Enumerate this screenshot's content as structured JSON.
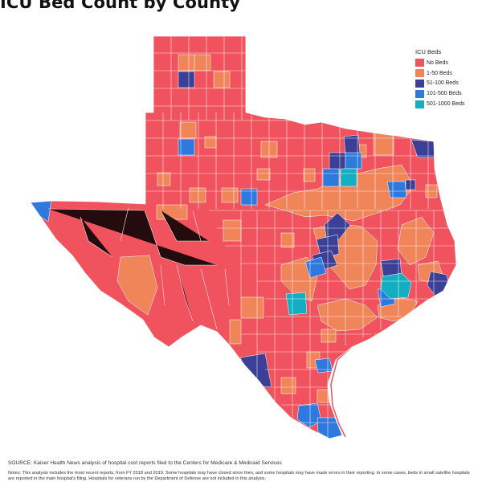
{
  "title": "ICU Bed Count by County",
  "legend": {
    "title": "ICU Beds",
    "items": [
      {
        "label": "No Beds",
        "color": "#f0525e"
      },
      {
        "label": "1-50 Beds",
        "color": "#f0855a"
      },
      {
        "label": "51-100 Beds",
        "color": "#3b3f95"
      },
      {
        "label": "101-500 Beds",
        "color": "#2e79de"
      },
      {
        "label": "501-1000 Beds",
        "color": "#14aec2"
      }
    ]
  },
  "source": "SOURCE: Kaiser Health News analysis of hospital cost reports filed to the Centers for Medicare & Medicaid Services",
  "notes": "Notes: This analysis includes the most recent reports, from FY 2018 and 2019. Some hospitals may have closed since then, and some hospitals may have made errors in their reporting. In some cases, beds in small satellite hospitals are reported in the main hospital's filing. Hospitals for veterans run by the Department of Defense are not included in this analysis.",
  "colors": {
    "no_beds": "#f0525e",
    "beds_1_50": "#f0855a",
    "beds_51_100": "#3b3f95",
    "beds_101_500": "#2e79de",
    "beds_501_1000": "#14aec2",
    "county_border": "#ffffff"
  }
}
